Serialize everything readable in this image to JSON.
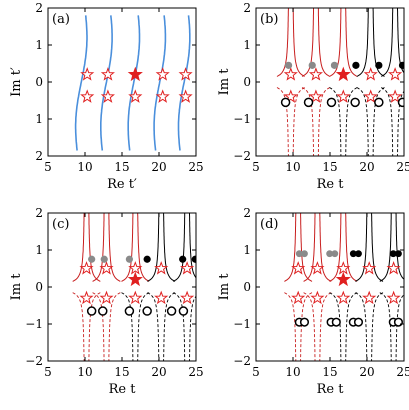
{
  "figure": {
    "panels": [
      {
        "label": "(a)",
        "xlabel": "Re t′",
        "ylabel": "Im t′",
        "xticks": [
          "5",
          "10",
          "15",
          "20",
          "25"
        ],
        "yticks": [
          "2",
          "1",
          "0",
          "1",
          "2"
        ]
      },
      {
        "label": "(b)",
        "xlabel": "Re t",
        "ylabel": "Im t",
        "xticks": [
          "5",
          "10",
          "15",
          "20",
          "25"
        ],
        "yticks": [
          "2",
          "1",
          "0",
          "−1",
          "−2"
        ]
      },
      {
        "label": "(c)",
        "xlabel": "Re t",
        "ylabel": "Im t",
        "xticks": [
          "5",
          "10",
          "15",
          "20",
          "25"
        ],
        "yticks": [
          "2",
          "1",
          "0",
          "−1",
          "−2"
        ]
      },
      {
        "label": "(d)",
        "xlabel": "Re t",
        "ylabel": "Im t",
        "xticks": [
          "5",
          "10",
          "15",
          "20",
          "25"
        ],
        "yticks": [
          "2",
          "1",
          "0",
          "−1",
          "−2"
        ]
      }
    ]
  },
  "chart_data": [
    {
      "type": "line",
      "xlim": [
        5,
        25
      ],
      "ylim": [
        -2,
        2
      ],
      "curves": "blue branch lines",
      "colors": {
        "curve": "#4a8fdc",
        "star": "#e02020"
      },
      "filled_star": {
        "x": 16.8,
        "y": 0.2
      },
      "open_stars": [
        {
          "x": 10.3,
          "y": 0.2
        },
        {
          "x": 13.1,
          "y": 0.2
        },
        {
          "x": 20.5,
          "y": 0.2
        },
        {
          "x": 23.6,
          "y": 0.2
        },
        {
          "x": 10.3,
          "y": -0.4
        },
        {
          "x": 13.1,
          "y": -0.4
        },
        {
          "x": 16.8,
          "y": -0.4
        },
        {
          "x": 20.5,
          "y": -0.4
        },
        {
          "x": 23.6,
          "y": -0.4
        }
      ],
      "branch_x": [
        9.5,
        12.9,
        16.6,
        20.1,
        23.4
      ]
    },
    {
      "type": "line",
      "xlim": [
        5,
        25
      ],
      "ylim": [
        -2,
        2
      ],
      "branch_x": [
        9.7,
        13.1,
        16.8,
        20.5,
        23.8
      ],
      "filled_star": {
        "x": 16.8,
        "y": 0.2
      },
      "open_stars_y": [
        0.2,
        -0.4
      ],
      "dots": [
        {
          "x": 9.4,
          "y": 0.45,
          "color": "gray"
        },
        {
          "x": 12.6,
          "y": 0.45,
          "color": "gray"
        },
        {
          "x": 15.6,
          "y": 0.45,
          "color": "gray"
        },
        {
          "x": 18.5,
          "y": 0.45,
          "color": "black"
        },
        {
          "x": 21.6,
          "y": 0.45,
          "color": "black"
        },
        {
          "x": 24.8,
          "y": 0.45,
          "color": "black"
        }
      ],
      "open_circles": [
        {
          "x": 9.0,
          "y": -0.55
        },
        {
          "x": 12.1,
          "y": -0.55
        },
        {
          "x": 15.2,
          "y": -0.55
        },
        {
          "x": 18.4,
          "y": -0.55
        },
        {
          "x": 21.6,
          "y": -0.55
        },
        {
          "x": 24.8,
          "y": -0.55
        }
      ]
    },
    {
      "type": "line",
      "xlim": [
        5,
        25
      ],
      "ylim": [
        -2,
        2
      ],
      "branch_x": [
        10.2,
        12.9,
        16.8,
        20.3,
        23.8
      ],
      "filled_star": {
        "x": 16.8,
        "y": 0.2
      },
      "open_stars_y": [
        0.5,
        -0.3
      ],
      "dots": [
        {
          "x": 10.9,
          "y": 0.75,
          "color": "gray"
        },
        {
          "x": 12.6,
          "y": 0.75,
          "color": "gray"
        },
        {
          "x": 16.0,
          "y": 0.75,
          "color": "gray"
        },
        {
          "x": 18.4,
          "y": 0.75,
          "color": "black"
        },
        {
          "x": 23.2,
          "y": 0.75,
          "color": "black"
        },
        {
          "x": 24.9,
          "y": 0.75,
          "color": "black"
        }
      ],
      "open_circles": [
        {
          "x": 10.9,
          "y": -0.65
        },
        {
          "x": 12.4,
          "y": -0.65
        },
        {
          "x": 16.0,
          "y": -0.65
        },
        {
          "x": 18.4,
          "y": -0.65
        },
        {
          "x": 21.7,
          "y": -0.65
        },
        {
          "x": 23.3,
          "y": -0.65
        }
      ]
    },
    {
      "type": "line",
      "xlim": [
        5,
        25
      ],
      "ylim": [
        -2,
        2
      ],
      "branch_x": [
        10.7,
        13.3,
        16.8,
        20.3,
        23.6
      ],
      "filled_star": {
        "x": 16.8,
        "y": 0.2
      },
      "open_stars_y": [
        0.5,
        -0.3
      ],
      "dot_pairs": [
        {
          "x": 11.2,
          "y": 0.9,
          "color": "gray"
        },
        {
          "x": 15.3,
          "y": 0.9,
          "color": "gray"
        },
        {
          "x": 18.5,
          "y": 0.9,
          "color": "black"
        },
        {
          "x": 23.9,
          "y": 0.9,
          "color": "black"
        }
      ],
      "open_circle_pairs": [
        {
          "x": 11.2,
          "y": -0.95
        },
        {
          "x": 15.5,
          "y": -0.95
        },
        {
          "x": 18.5,
          "y": -0.95
        },
        {
          "x": 23.9,
          "y": -0.95
        }
      ]
    }
  ]
}
